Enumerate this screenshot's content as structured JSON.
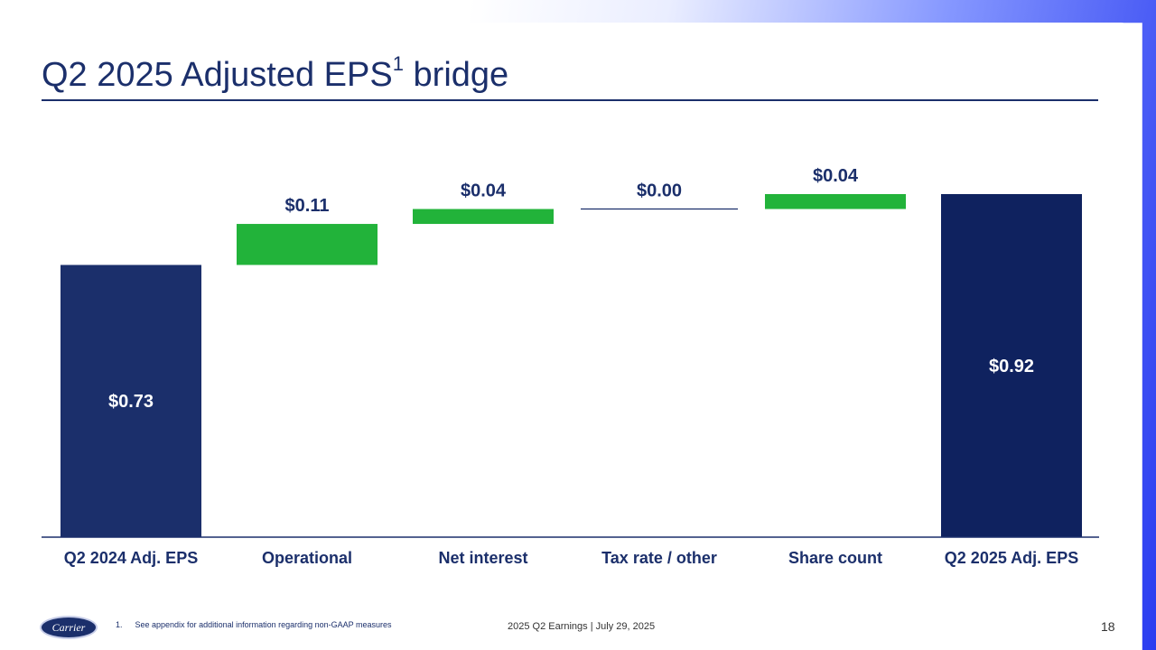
{
  "slide": {
    "title": "Q2 2025 Adjusted EPS",
    "title_superscript": "1",
    "title_suffix": "bridge",
    "footnote_number": "1.",
    "footnote_text": "See appendix for additional information regarding non-GAAP measures",
    "event_text": "2025 Q2 Earnings | July 29, 2025",
    "page_number": "18",
    "logo_text": "Carrier"
  },
  "colors": {
    "navy": "#1b2f6b",
    "navy_dark": "#0f225f",
    "green": "#22b33a",
    "white": "#ffffff"
  },
  "chart_data": {
    "type": "bar",
    "subtype": "waterfall",
    "categories": [
      "Q2 2024 Adj. EPS",
      "Operational",
      "Net interest",
      "Tax rate / other",
      "Share count",
      "Q2 2025 Adj. EPS"
    ],
    "values": [
      0.73,
      0.11,
      0.04,
      0.0,
      0.04,
      0.92
    ],
    "kinds": [
      "total",
      "delta",
      "delta",
      "delta",
      "delta",
      "total"
    ],
    "labels": [
      "$0.73",
      "$0.11",
      "$0.04",
      "$0.00",
      "$0.04",
      "$0.92"
    ],
    "ylim": [
      0,
      0.92
    ],
    "grid": false,
    "legend": "none"
  }
}
